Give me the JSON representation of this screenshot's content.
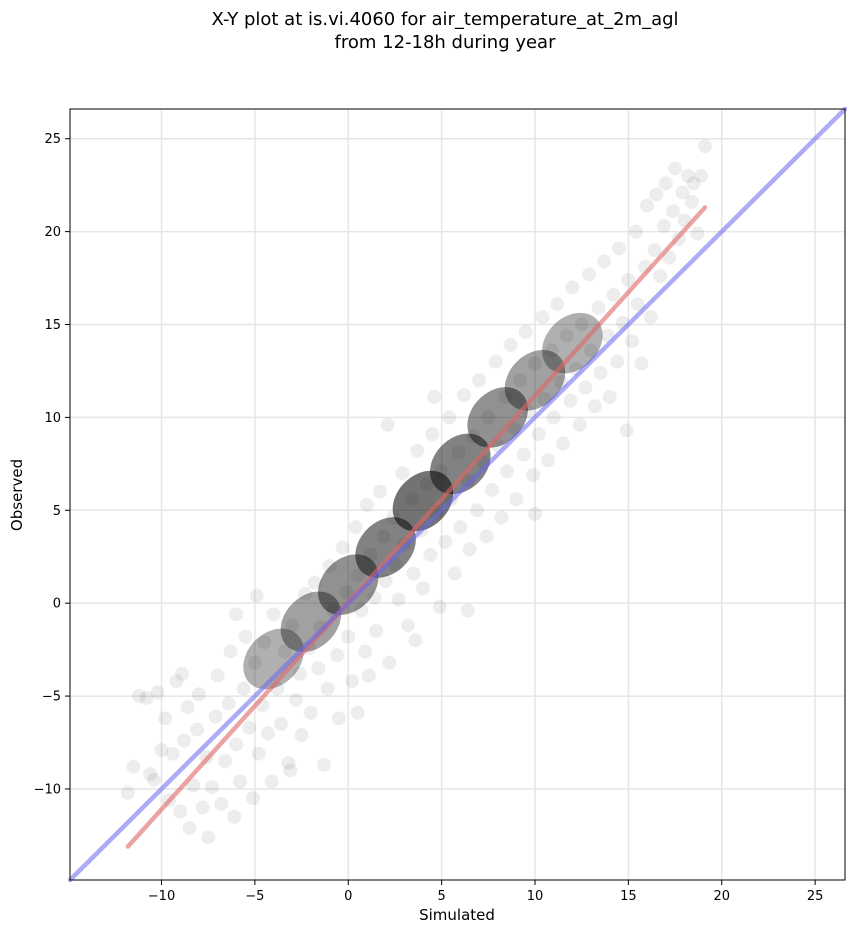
{
  "chart_data": {
    "type": "scatter",
    "title": [
      "X-Y plot at is.vi.4060 for air_temperature_at_2m_agl",
      "from 12-18h during year"
    ],
    "xlabel": "Simulated",
    "ylabel": "Observed",
    "xlim": [
      -14.9,
      26.6
    ],
    "ylim": [
      -14.9,
      26.6
    ],
    "xticks": [
      -10,
      -5,
      0,
      5,
      10,
      15,
      20,
      25
    ],
    "yticks": [
      -10,
      -5,
      0,
      5,
      10,
      15,
      20,
      25
    ],
    "xtick_labels": [
      "−10",
      "−5",
      "0",
      "5",
      "10",
      "15",
      "20",
      "25"
    ],
    "ytick_labels": [
      "−10",
      "−5",
      "0",
      "5",
      "10",
      "15",
      "20",
      "25"
    ],
    "grid": true,
    "point_color": "#000000",
    "point_opacity": 0.07,
    "points": [
      [
        -11.8,
        -10.2
      ],
      [
        -11.5,
        -8.8
      ],
      [
        -11.2,
        -5.0
      ],
      [
        -10.8,
        -5.1
      ],
      [
        -10.6,
        -9.2
      ],
      [
        -10.2,
        -4.8
      ],
      [
        -10.0,
        -7.9
      ],
      [
        -9.8,
        -6.2
      ],
      [
        -9.6,
        -10.6
      ],
      [
        -9.4,
        -8.1
      ],
      [
        -9.2,
        -4.2
      ],
      [
        -9.0,
        -11.2
      ],
      [
        -8.8,
        -7.4
      ],
      [
        -8.6,
        -5.6
      ],
      [
        -8.5,
        -12.1
      ],
      [
        -8.3,
        -9.8
      ],
      [
        -8.1,
        -6.8
      ],
      [
        -8.0,
        -4.9
      ],
      [
        -7.8,
        -11.0
      ],
      [
        -7.6,
        -8.3
      ],
      [
        -7.5,
        -12.6
      ],
      [
        -7.3,
        -9.9
      ],
      [
        -7.1,
        -6.1
      ],
      [
        -7.0,
        -3.9
      ],
      [
        -6.8,
        -10.8
      ],
      [
        -6.6,
        -8.5
      ],
      [
        -6.4,
        -5.4
      ],
      [
        -6.3,
        -2.6
      ],
      [
        -6.1,
        -11.5
      ],
      [
        -6.0,
        -7.6
      ],
      [
        -5.8,
        -9.6
      ],
      [
        -5.6,
        -4.6
      ],
      [
        -5.5,
        -1.8
      ],
      [
        -5.3,
        -6.7
      ],
      [
        -5.1,
        -10.5
      ],
      [
        -5.0,
        -3.2
      ],
      [
        -4.8,
        -8.1
      ],
      [
        -4.6,
        -5.5
      ],
      [
        -4.5,
        -2.1
      ],
      [
        -4.3,
        -7.0
      ],
      [
        -4.1,
        -9.6
      ],
      [
        -4.0,
        -0.6
      ],
      [
        -3.8,
        -4.6
      ],
      [
        -3.6,
        -6.5
      ],
      [
        -3.4,
        -2.6
      ],
      [
        -3.2,
        -8.6
      ],
      [
        -3.0,
        -1.2
      ],
      [
        -2.8,
        -5.2
      ],
      [
        -2.6,
        -3.8
      ],
      [
        -2.5,
        -7.1
      ],
      [
        -2.3,
        0.5
      ],
      [
        -2.1,
        -2.4
      ],
      [
        -2.0,
        -5.9
      ],
      [
        -1.8,
        1.1
      ],
      [
        -1.6,
        -3.5
      ],
      [
        -1.5,
        -1.3
      ],
      [
        -1.3,
        -8.7
      ],
      [
        -1.1,
        -4.6
      ],
      [
        -1.0,
        2.0
      ],
      [
        -0.8,
        -0.4
      ],
      [
        -0.6,
        -2.8
      ],
      [
        -0.5,
        -6.2
      ],
      [
        -0.3,
        3.0
      ],
      [
        -0.1,
        0.6
      ],
      [
        0.0,
        -1.8
      ],
      [
        0.2,
        -4.2
      ],
      [
        0.4,
        4.1
      ],
      [
        0.5,
        1.5
      ],
      [
        0.7,
        -0.4
      ],
      [
        0.9,
        -2.6
      ],
      [
        1.0,
        5.3
      ],
      [
        1.2,
        2.6
      ],
      [
        1.4,
        0.3
      ],
      [
        1.5,
        -1.5
      ],
      [
        1.7,
        6.0
      ],
      [
        1.9,
        3.6
      ],
      [
        2.0,
        1.2
      ],
      [
        2.2,
        -3.2
      ],
      [
        2.4,
        4.6
      ],
      [
        2.5,
        2.1
      ],
      [
        2.7,
        0.2
      ],
      [
        2.9,
        7.0
      ],
      [
        3.0,
        3.2
      ],
      [
        3.2,
        -1.2
      ],
      [
        3.4,
        5.6
      ],
      [
        3.5,
        1.6
      ],
      [
        3.7,
        8.2
      ],
      [
        3.9,
        3.9
      ],
      [
        4.0,
        0.8
      ],
      [
        4.2,
        6.4
      ],
      [
        4.4,
        2.6
      ],
      [
        4.5,
        9.1
      ],
      [
        4.7,
        4.9
      ],
      [
        4.9,
        -0.2
      ],
      [
        5.0,
        7.1
      ],
      [
        5.2,
        3.3
      ],
      [
        5.4,
        10.0
      ],
      [
        5.5,
        5.6
      ],
      [
        5.7,
        1.6
      ],
      [
        5.9,
        8.1
      ],
      [
        6.0,
        4.1
      ],
      [
        6.2,
        11.2
      ],
      [
        6.4,
        6.6
      ],
      [
        6.5,
        2.9
      ],
      [
        6.7,
        9.0
      ],
      [
        6.9,
        5.0
      ],
      [
        7.0,
        12.0
      ],
      [
        7.2,
        7.6
      ],
      [
        7.4,
        3.6
      ],
      [
        7.5,
        10.0
      ],
      [
        7.7,
        6.1
      ],
      [
        7.9,
        13.0
      ],
      [
        8.0,
        8.5
      ],
      [
        8.2,
        4.6
      ],
      [
        8.4,
        11.1
      ],
      [
        8.5,
        7.1
      ],
      [
        8.7,
        13.9
      ],
      [
        8.9,
        9.4
      ],
      [
        9.0,
        5.6
      ],
      [
        9.2,
        12.0
      ],
      [
        9.4,
        8.0
      ],
      [
        9.5,
        14.6
      ],
      [
        9.7,
        10.3
      ],
      [
        9.9,
        6.9
      ],
      [
        10.0,
        12.9
      ],
      [
        10.2,
        9.1
      ],
      [
        10.4,
        15.4
      ],
      [
        10.5,
        11.0
      ],
      [
        10.7,
        7.7
      ],
      [
        10.9,
        13.6
      ],
      [
        11.0,
        10.0
      ],
      [
        11.2,
        16.1
      ],
      [
        11.4,
        11.9
      ],
      [
        11.5,
        8.6
      ],
      [
        11.7,
        14.4
      ],
      [
        11.9,
        10.9
      ],
      [
        12.0,
        17.0
      ],
      [
        12.2,
        12.6
      ],
      [
        12.4,
        9.6
      ],
      [
        12.5,
        15.0
      ],
      [
        12.7,
        11.6
      ],
      [
        12.9,
        17.7
      ],
      [
        13.0,
        13.6
      ],
      [
        13.2,
        10.6
      ],
      [
        13.4,
        15.9
      ],
      [
        13.5,
        12.4
      ],
      [
        13.7,
        18.4
      ],
      [
        13.9,
        14.4
      ],
      [
        14.0,
        11.1
      ],
      [
        14.2,
        16.6
      ],
      [
        14.4,
        13.0
      ],
      [
        14.5,
        19.1
      ],
      [
        14.7,
        15.1
      ],
      [
        14.9,
        9.3
      ],
      [
        15.0,
        17.4
      ],
      [
        15.2,
        14.1
      ],
      [
        15.4,
        20.0
      ],
      [
        15.5,
        16.1
      ],
      [
        15.7,
        12.9
      ],
      [
        15.9,
        18.1
      ],
      [
        16.0,
        21.4
      ],
      [
        16.2,
        15.4
      ],
      [
        16.4,
        19.0
      ],
      [
        16.5,
        22.0
      ],
      [
        16.7,
        17.6
      ],
      [
        16.9,
        20.3
      ],
      [
        17.0,
        22.6
      ],
      [
        17.2,
        18.6
      ],
      [
        17.4,
        21.1
      ],
      [
        17.5,
        23.4
      ],
      [
        17.7,
        19.6
      ],
      [
        17.9,
        22.1
      ],
      [
        18.0,
        20.6
      ],
      [
        18.2,
        23.0
      ],
      [
        18.4,
        21.6
      ],
      [
        18.5,
        22.6
      ],
      [
        18.7,
        19.9
      ],
      [
        18.9,
        23.0
      ],
      [
        19.1,
        24.6
      ],
      [
        -4.9,
        0.4
      ],
      [
        -3.1,
        -9.0
      ],
      [
        -6.0,
        -0.6
      ],
      [
        0.5,
        -5.9
      ],
      [
        2.1,
        9.6
      ],
      [
        4.6,
        11.1
      ],
      [
        6.4,
        -0.4
      ],
      [
        10.0,
        4.8
      ],
      [
        -10.4,
        -9.5
      ],
      [
        -8.9,
        -3.8
      ],
      [
        1.1,
        -3.9
      ],
      [
        3.6,
        -2.0
      ]
    ],
    "lines": [
      {
        "color": "#e06666",
        "opacity": 0.6,
        "x": [
          -11.8,
          19.1
        ],
        "y": [
          -13.1,
          21.3
        ]
      },
      {
        "color": "#6666ee",
        "opacity": 0.55,
        "x": [
          -14.9,
          26.6
        ],
        "y": [
          -14.9,
          26.6
        ]
      }
    ]
  }
}
